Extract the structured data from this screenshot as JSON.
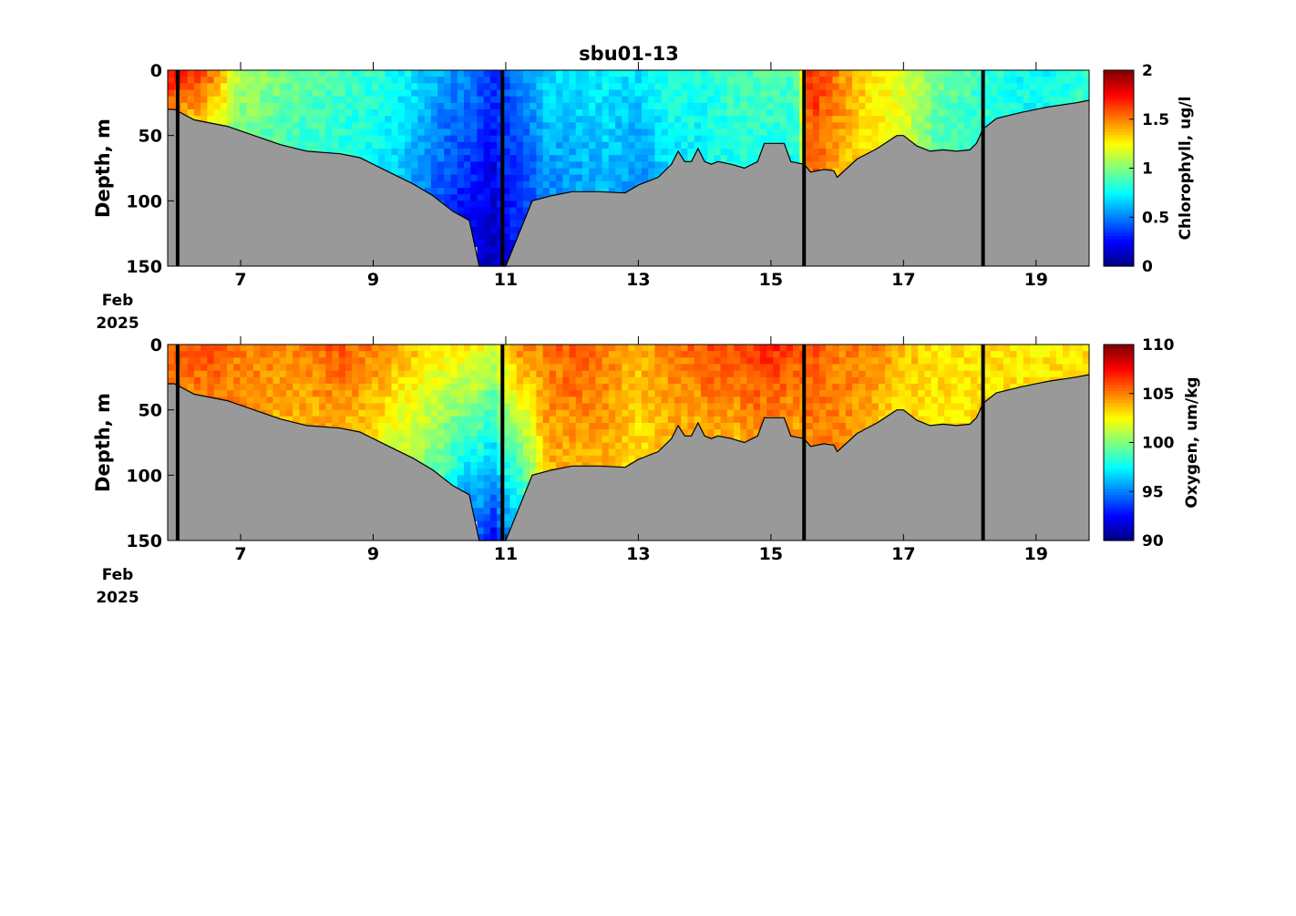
{
  "chart_data": [
    {
      "type": "heatmap",
      "title": "sbu01-13",
      "ylabel": "Depth, m",
      "colorbar_label": "Chlorophyll, ug/l",
      "colormap": "jet",
      "clim": [
        0,
        2
      ],
      "colorbar_ticks": [
        "0",
        "0.5",
        "1",
        "1.5",
        "2"
      ],
      "colorbar_tick_values": [
        0,
        0.5,
        1,
        1.5,
        2
      ],
      "ylim": [
        0,
        150
      ],
      "yticks": [
        0,
        50,
        100,
        150
      ],
      "xlim": [
        5.9,
        19.8
      ],
      "xticks": [
        7,
        9,
        11,
        13,
        15,
        17,
        19
      ],
      "xtick_labels": [
        "7",
        "9",
        "11",
        "13",
        "15",
        "17",
        "19"
      ],
      "x_date_label": [
        "Feb",
        "2025"
      ],
      "bottom_color": "#999999",
      "vertical_lines_day": [
        6.05,
        10.95,
        15.5,
        18.2
      ],
      "bottom_depth": {
        "day": [
          5.9,
          6.0,
          6.3,
          6.8,
          7.2,
          7.6,
          8.0,
          8.5,
          8.8,
          9.2,
          9.6,
          9.9,
          10.2,
          10.45,
          10.6,
          10.75,
          10.85,
          11.0,
          11.2,
          11.4,
          11.7,
          12.0,
          12.4,
          12.8,
          13.0,
          13.3,
          13.5,
          13.6,
          13.7,
          13.8,
          13.9,
          14.0,
          14.1,
          14.2,
          14.4,
          14.6,
          14.8,
          14.9,
          15.2,
          15.3,
          15.5,
          15.6,
          15.8,
          15.95,
          16.0,
          16.3,
          16.6,
          16.9,
          17.0,
          17.2,
          17.4,
          17.6,
          17.8,
          18.0,
          18.1,
          18.2,
          18.4,
          18.8,
          19.2,
          19.6,
          19.8
        ],
        "depth": [
          30,
          30,
          38,
          43,
          50,
          57,
          62,
          64,
          67,
          77,
          87,
          96,
          108,
          115,
          150,
          150,
          150,
          150,
          125,
          100,
          96,
          93,
          93,
          94,
          88,
          82,
          72,
          62,
          70,
          70,
          60,
          70,
          72,
          70,
          72,
          75,
          70,
          56,
          56,
          70,
          72,
          78,
          76,
          77,
          82,
          68,
          60,
          50,
          50,
          58,
          62,
          61,
          62,
          61,
          56,
          45,
          37,
          32,
          28,
          25,
          23
        ]
      },
      "profile_series": {
        "day": [
          5.9,
          6.5,
          7.0,
          7.5,
          8.0,
          8.5,
          9.0,
          9.5,
          10.0,
          10.5,
          10.8,
          11.2,
          11.6,
          12.0,
          12.5,
          13.0,
          13.5,
          14.0,
          14.5,
          15.0,
          15.4,
          15.6,
          16.0,
          16.5,
          17.0,
          17.5,
          18.0,
          18.5,
          19.0,
          19.5,
          19.8
        ],
        "surface": [
          1.8,
          1.6,
          1.1,
          1.0,
          0.95,
          0.9,
          0.85,
          0.75,
          0.6,
          0.5,
          0.35,
          0.5,
          0.7,
          0.7,
          0.75,
          0.7,
          0.85,
          0.8,
          0.9,
          0.9,
          0.9,
          1.7,
          1.5,
          1.3,
          1.2,
          1.0,
          0.9,
          0.8,
          0.75,
          0.8,
          0.85
        ],
        "bottom": [
          1.5,
          1.3,
          1.0,
          0.9,
          0.85,
          0.8,
          0.75,
          0.6,
          0.4,
          0.2,
          0.1,
          0.3,
          0.5,
          0.55,
          0.6,
          0.5,
          0.7,
          0.75,
          0.8,
          0.8,
          0.8,
          1.6,
          1.4,
          1.3,
          1.2,
          0.9,
          0.85,
          0.8,
          0.75,
          0.8,
          0.85
        ]
      }
    },
    {
      "type": "heatmap",
      "title": "",
      "ylabel": "Depth, m",
      "colorbar_label": "Oxygen, um/kg",
      "colormap": "jet",
      "clim": [
        90,
        110
      ],
      "colorbar_ticks": [
        "90",
        "95",
        "100",
        "105",
        "110"
      ],
      "colorbar_tick_values": [
        90,
        95,
        100,
        105,
        110
      ],
      "ylim": [
        0,
        150
      ],
      "yticks": [
        0,
        50,
        100,
        150
      ],
      "xlim": [
        5.9,
        19.8
      ],
      "xticks": [
        7,
        9,
        11,
        13,
        15,
        17,
        19
      ],
      "xtick_labels": [
        "7",
        "9",
        "11",
        "13",
        "15",
        "17",
        "19"
      ],
      "x_date_label": [
        "Feb",
        "2025"
      ],
      "bottom_color": "#999999",
      "vertical_lines_day": [
        6.05,
        10.95,
        15.5,
        18.2
      ],
      "bottom_depth": {
        "day": [
          5.9,
          6.0,
          6.3,
          6.8,
          7.2,
          7.6,
          8.0,
          8.5,
          8.8,
          9.2,
          9.6,
          9.9,
          10.2,
          10.45,
          10.6,
          10.75,
          10.85,
          11.0,
          11.2,
          11.4,
          11.7,
          12.0,
          12.4,
          12.8,
          13.0,
          13.3,
          13.5,
          13.6,
          13.7,
          13.8,
          13.9,
          14.0,
          14.1,
          14.2,
          14.4,
          14.6,
          14.8,
          14.9,
          15.2,
          15.3,
          15.5,
          15.6,
          15.8,
          15.95,
          16.0,
          16.3,
          16.6,
          16.9,
          17.0,
          17.2,
          17.4,
          17.6,
          17.8,
          18.0,
          18.1,
          18.2,
          18.4,
          18.8,
          19.2,
          19.6,
          19.8
        ],
        "depth": [
          30,
          30,
          38,
          43,
          50,
          57,
          62,
          64,
          67,
          77,
          87,
          96,
          108,
          115,
          150,
          150,
          150,
          150,
          125,
          100,
          96,
          93,
          93,
          94,
          88,
          82,
          72,
          62,
          70,
          70,
          60,
          70,
          72,
          70,
          72,
          75,
          70,
          56,
          56,
          70,
          72,
          78,
          76,
          77,
          82,
          68,
          60,
          50,
          50,
          58,
          62,
          61,
          62,
          61,
          56,
          45,
          37,
          32,
          28,
          25,
          23
        ]
      },
      "profile_series": {
        "day": [
          5.9,
          6.5,
          7.0,
          7.5,
          8.0,
          8.5,
          9.0,
          9.5,
          10.0,
          10.5,
          10.8,
          11.2,
          11.6,
          12.0,
          12.5,
          13.0,
          13.5,
          14.0,
          14.5,
          15.0,
          15.4,
          15.6,
          16.0,
          16.5,
          17.0,
          17.5,
          18.0,
          18.5,
          19.0,
          19.5,
          19.8
        ],
        "surface": [
          106,
          106,
          105,
          105,
          105,
          106,
          105,
          104,
          103,
          103,
          102,
          105,
          105,
          106,
          105,
          104,
          105,
          106,
          106,
          107,
          106,
          106,
          105,
          105,
          104,
          103,
          103,
          103,
          103,
          103,
          103
        ],
        "bottom": [
          105,
          105,
          105,
          104,
          104,
          104,
          103,
          101,
          99,
          95,
          92,
          97,
          104,
          104,
          104,
          103,
          104,
          104,
          104,
          105,
          104,
          105,
          105,
          104,
          103,
          103,
          103,
          103,
          103,
          103,
          103
        ]
      }
    }
  ]
}
